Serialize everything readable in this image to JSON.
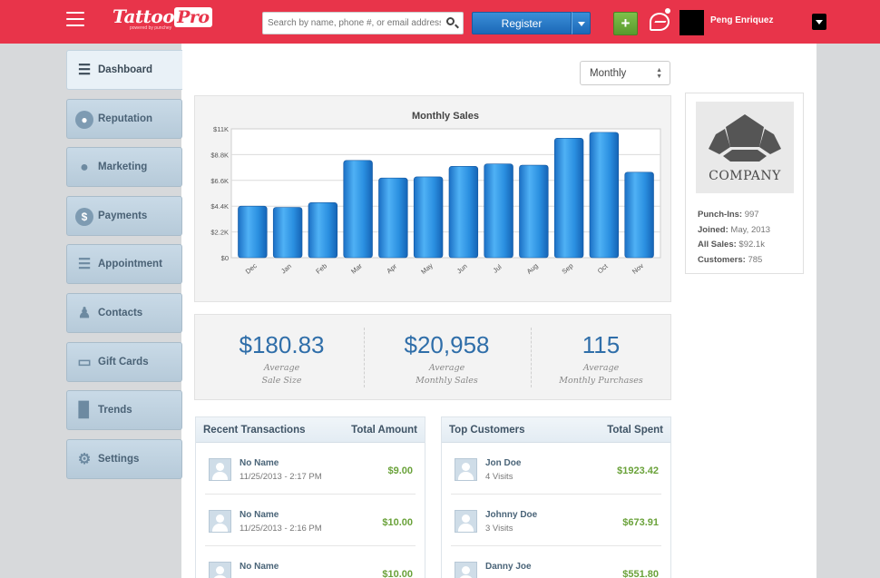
{
  "header": {
    "logo_text": "Tattoo",
    "logo_highlight": "Pro",
    "logo_sub": "powered by punchey",
    "search_placeholder": "Search by name, phone #, or email address",
    "register_label": "Register",
    "plus_label": "+",
    "user_name": "Peng Enriquez"
  },
  "sidebar": {
    "items": [
      {
        "label": "Dashboard",
        "icon": "sliders-icon"
      },
      {
        "label": "Reputation",
        "icon": "globe-icon"
      },
      {
        "label": "Marketing",
        "icon": "speech-bubble-icon"
      },
      {
        "label": "Payments",
        "icon": "dollar-icon"
      },
      {
        "label": "Appointment",
        "icon": "sliders-icon"
      },
      {
        "label": "Contacts",
        "icon": "person-icon"
      },
      {
        "label": "Gift Cards",
        "icon": "card-icon"
      },
      {
        "label": "Trends",
        "icon": "bar-chart-icon"
      },
      {
        "label": "Settings",
        "icon": "gear-icon"
      }
    ]
  },
  "period_select": {
    "value": "Monthly"
  },
  "chart_data": {
    "type": "bar",
    "title": "Monthly Sales",
    "categories": [
      "Dec",
      "Jan",
      "Feb",
      "Mar",
      "Apr",
      "May",
      "Jun",
      "Jul",
      "Aug",
      "Sep",
      "Oct",
      "Nov"
    ],
    "values": [
      4.4,
      4.3,
      4.7,
      8.3,
      6.8,
      6.9,
      7.8,
      8.0,
      7.9,
      10.2,
      10.7,
      7.3
    ],
    "ylim": [
      0,
      11
    ],
    "yticks": [
      "$0",
      "$2.2K",
      "$4.4K",
      "$6.6K",
      "$8.8K",
      "$11K"
    ],
    "xlabel": "",
    "ylabel": "",
    "grid": true,
    "bar_color": "#2a8fe0"
  },
  "stats": [
    {
      "value": "$180.83",
      "label1": "Average",
      "label2": "Sale Size"
    },
    {
      "value": "$20,958",
      "label1": "Average",
      "label2": "Monthly Sales"
    },
    {
      "value": "115",
      "label1": "Average",
      "label2": "Monthly Purchases"
    }
  ],
  "transactions": {
    "title": "Recent Transactions",
    "amount_header": "Total Amount",
    "rows": [
      {
        "name": "No Name",
        "sub": "11/25/2013 - 2:17 PM",
        "amount": "$9.00"
      },
      {
        "name": "No Name",
        "sub": "11/25/2013 - 2:16 PM",
        "amount": "$10.00"
      },
      {
        "name": "No Name",
        "sub": "",
        "amount": "$10.00"
      }
    ]
  },
  "customers": {
    "title": "Top Customers",
    "amount_header": "Total Spent",
    "rows": [
      {
        "name": "Jon Doe",
        "sub": "4 Visits",
        "amount": "$1923.42"
      },
      {
        "name": "Johnny Doe",
        "sub": "3 Visits",
        "amount": "$673.91"
      },
      {
        "name": "Danny Joe",
        "sub": "",
        "amount": "$551.80"
      }
    ]
  },
  "company": {
    "name": "COMPANY",
    "punchins_label": "Punch-Ins:",
    "punchins": "997",
    "joined_label": "Joined:",
    "joined": "May, 2013",
    "sales_label": "All Sales:",
    "sales": "$92.1k",
    "customers_label": "Customers:",
    "customers": "785"
  }
}
